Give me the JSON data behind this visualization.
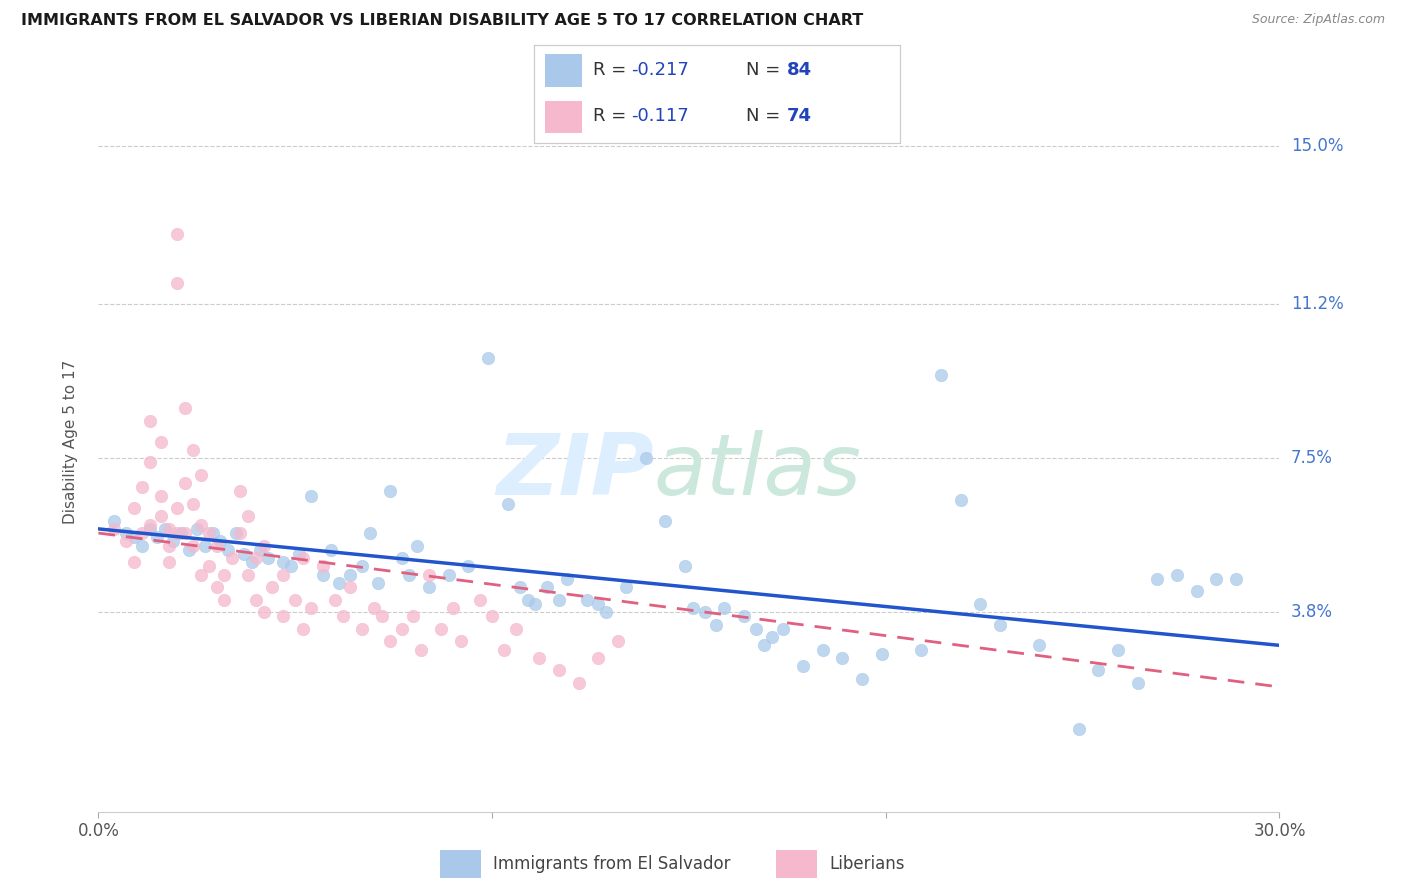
{
  "title": "IMMIGRANTS FROM EL SALVADOR VS LIBERIAN DISABILITY AGE 5 TO 17 CORRELATION CHART",
  "source": "Source: ZipAtlas.com",
  "ylabel": "Disability Age 5 to 17",
  "ytick_labels": [
    "15.0%",
    "11.2%",
    "7.5%",
    "3.8%"
  ],
  "ytick_values": [
    0.15,
    0.112,
    0.075,
    0.038
  ],
  "xlim": [
    0.0,
    0.3
  ],
  "ylim": [
    -0.01,
    0.168
  ],
  "legend_blue_r": "-0.217",
  "legend_blue_n": "84",
  "legend_pink_r": "-0.117",
  "legend_pink_n": "74",
  "blue_scatter_color": "#aac9ea",
  "pink_scatter_color": "#f5b8cc",
  "blue_line_color": "#2255cc",
  "pink_line_color": "#e06080",
  "blue_trend_x": [
    0.0,
    0.3
  ],
  "blue_trend_y": [
    0.058,
    0.03
  ],
  "pink_trend_x": [
    0.0,
    0.3
  ],
  "pink_trend_y": [
    0.057,
    0.02
  ],
  "blue_pts": [
    [
      0.004,
      0.06
    ],
    [
      0.007,
      0.057
    ],
    [
      0.009,
      0.056
    ],
    [
      0.011,
      0.054
    ],
    [
      0.013,
      0.058
    ],
    [
      0.015,
      0.056
    ],
    [
      0.017,
      0.058
    ],
    [
      0.019,
      0.055
    ],
    [
      0.021,
      0.057
    ],
    [
      0.023,
      0.053
    ],
    [
      0.025,
      0.058
    ],
    [
      0.027,
      0.054
    ],
    [
      0.029,
      0.057
    ],
    [
      0.031,
      0.055
    ],
    [
      0.033,
      0.053
    ],
    [
      0.035,
      0.057
    ],
    [
      0.037,
      0.052
    ],
    [
      0.039,
      0.05
    ],
    [
      0.041,
      0.053
    ],
    [
      0.043,
      0.051
    ],
    [
      0.047,
      0.05
    ],
    [
      0.049,
      0.049
    ],
    [
      0.051,
      0.052
    ],
    [
      0.054,
      0.066
    ],
    [
      0.057,
      0.047
    ],
    [
      0.059,
      0.053
    ],
    [
      0.061,
      0.045
    ],
    [
      0.064,
      0.047
    ],
    [
      0.067,
      0.049
    ],
    [
      0.069,
      0.057
    ],
    [
      0.071,
      0.045
    ],
    [
      0.074,
      0.067
    ],
    [
      0.077,
      0.051
    ],
    [
      0.079,
      0.047
    ],
    [
      0.081,
      0.054
    ],
    [
      0.084,
      0.044
    ],
    [
      0.089,
      0.047
    ],
    [
      0.094,
      0.049
    ],
    [
      0.099,
      0.099
    ],
    [
      0.104,
      0.064
    ],
    [
      0.107,
      0.044
    ],
    [
      0.109,
      0.041
    ],
    [
      0.111,
      0.04
    ],
    [
      0.114,
      0.044
    ],
    [
      0.117,
      0.041
    ],
    [
      0.119,
      0.046
    ],
    [
      0.124,
      0.041
    ],
    [
      0.127,
      0.04
    ],
    [
      0.129,
      0.038
    ],
    [
      0.134,
      0.044
    ],
    [
      0.139,
      0.075
    ],
    [
      0.144,
      0.06
    ],
    [
      0.149,
      0.049
    ],
    [
      0.151,
      0.039
    ],
    [
      0.154,
      0.038
    ],
    [
      0.157,
      0.035
    ],
    [
      0.159,
      0.039
    ],
    [
      0.164,
      0.037
    ],
    [
      0.167,
      0.034
    ],
    [
      0.169,
      0.03
    ],
    [
      0.171,
      0.032
    ],
    [
      0.174,
      0.034
    ],
    [
      0.179,
      0.025
    ],
    [
      0.184,
      0.029
    ],
    [
      0.189,
      0.027
    ],
    [
      0.194,
      0.022
    ],
    [
      0.199,
      0.028
    ],
    [
      0.209,
      0.029
    ],
    [
      0.214,
      0.095
    ],
    [
      0.219,
      0.065
    ],
    [
      0.224,
      0.04
    ],
    [
      0.229,
      0.035
    ],
    [
      0.239,
      0.03
    ],
    [
      0.249,
      0.01
    ],
    [
      0.254,
      0.024
    ],
    [
      0.259,
      0.029
    ],
    [
      0.264,
      0.021
    ],
    [
      0.269,
      0.046
    ],
    [
      0.274,
      0.047
    ],
    [
      0.279,
      0.043
    ],
    [
      0.284,
      0.046
    ],
    [
      0.289,
      0.046
    ]
  ],
  "pink_pts": [
    [
      0.004,
      0.058
    ],
    [
      0.007,
      0.055
    ],
    [
      0.009,
      0.05
    ],
    [
      0.009,
      0.063
    ],
    [
      0.011,
      0.057
    ],
    [
      0.011,
      0.068
    ],
    [
      0.013,
      0.059
    ],
    [
      0.013,
      0.074
    ],
    [
      0.013,
      0.084
    ],
    [
      0.016,
      0.061
    ],
    [
      0.016,
      0.066
    ],
    [
      0.016,
      0.079
    ],
    [
      0.018,
      0.058
    ],
    [
      0.018,
      0.05
    ],
    [
      0.018,
      0.054
    ],
    [
      0.02,
      0.057
    ],
    [
      0.02,
      0.063
    ],
    [
      0.02,
      0.129
    ],
    [
      0.02,
      0.117
    ],
    [
      0.022,
      0.069
    ],
    [
      0.022,
      0.057
    ],
    [
      0.022,
      0.087
    ],
    [
      0.024,
      0.064
    ],
    [
      0.024,
      0.077
    ],
    [
      0.024,
      0.054
    ],
    [
      0.026,
      0.059
    ],
    [
      0.026,
      0.047
    ],
    [
      0.026,
      0.071
    ],
    [
      0.028,
      0.057
    ],
    [
      0.028,
      0.049
    ],
    [
      0.03,
      0.044
    ],
    [
      0.03,
      0.054
    ],
    [
      0.032,
      0.041
    ],
    [
      0.032,
      0.047
    ],
    [
      0.034,
      0.051
    ],
    [
      0.036,
      0.057
    ],
    [
      0.036,
      0.067
    ],
    [
      0.038,
      0.047
    ],
    [
      0.038,
      0.061
    ],
    [
      0.04,
      0.051
    ],
    [
      0.04,
      0.041
    ],
    [
      0.042,
      0.054
    ],
    [
      0.042,
      0.038
    ],
    [
      0.044,
      0.044
    ],
    [
      0.047,
      0.047
    ],
    [
      0.047,
      0.037
    ],
    [
      0.05,
      0.041
    ],
    [
      0.052,
      0.051
    ],
    [
      0.052,
      0.034
    ],
    [
      0.054,
      0.039
    ],
    [
      0.057,
      0.049
    ],
    [
      0.06,
      0.041
    ],
    [
      0.062,
      0.037
    ],
    [
      0.064,
      0.044
    ],
    [
      0.067,
      0.034
    ],
    [
      0.07,
      0.039
    ],
    [
      0.072,
      0.037
    ],
    [
      0.074,
      0.031
    ],
    [
      0.077,
      0.034
    ],
    [
      0.08,
      0.037
    ],
    [
      0.082,
      0.029
    ],
    [
      0.084,
      0.047
    ],
    [
      0.087,
      0.034
    ],
    [
      0.09,
      0.039
    ],
    [
      0.092,
      0.031
    ],
    [
      0.097,
      0.041
    ],
    [
      0.1,
      0.037
    ],
    [
      0.103,
      0.029
    ],
    [
      0.106,
      0.034
    ],
    [
      0.112,
      0.027
    ],
    [
      0.117,
      0.024
    ],
    [
      0.122,
      0.021
    ],
    [
      0.127,
      0.027
    ],
    [
      0.132,
      0.031
    ]
  ]
}
